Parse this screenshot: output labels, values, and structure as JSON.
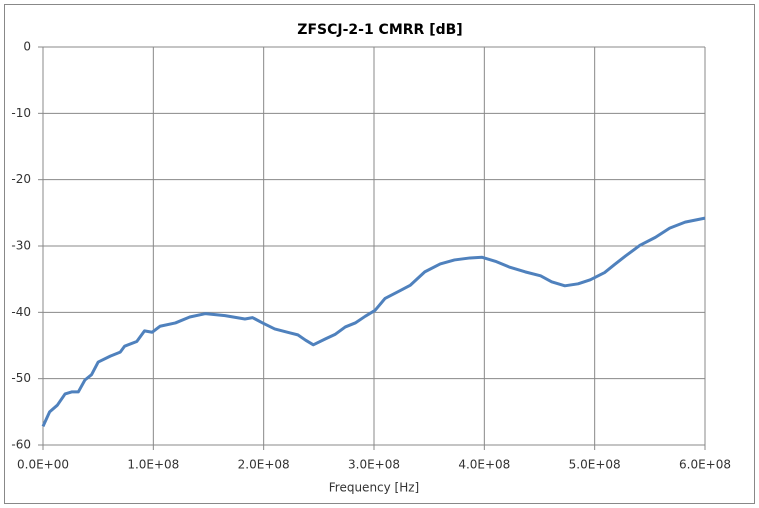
{
  "chart_data": {
    "type": "line",
    "title": "ZFSCJ-2-1  CMRR [dB]",
    "x_label": "Frequency [Hz]",
    "x": [
      0,
      6000000,
      13000000,
      20000000,
      26000000,
      32000000,
      38000000,
      44000000,
      50000000,
      61000000,
      70000000,
      74000000,
      85000000,
      92000000,
      99000000,
      106000000,
      120000000,
      133000000,
      147000000,
      165000000,
      183000000,
      190000000,
      199000000,
      210000000,
      224000000,
      231000000,
      238000000,
      245000000,
      256000000,
      265000000,
      274000000,
      283000000,
      292000000,
      301000000,
      310000000,
      324000000,
      333000000,
      346000000,
      360000000,
      373000000,
      387000000,
      398000000,
      410000000,
      423000000,
      437000000,
      451000000,
      461000000,
      473000000,
      485000000,
      496000000,
      509000000,
      518000000,
      528000000,
      541000000,
      555000000,
      568000000,
      582000000,
      600000000
    ],
    "series": [
      {
        "name": "CMRR",
        "color": "#4f81bd",
        "values": [
          -57.2,
          -55,
          -54,
          -52.3,
          -52,
          -52,
          -50.2,
          -49.4,
          -47.5,
          -46.6,
          -46,
          -45.1,
          -44.4,
          -42.8,
          -43,
          -42.1,
          -41.6,
          -40.7,
          -40.2,
          -40.5,
          -41,
          -40.8,
          -41.6,
          -42.5,
          -43.1,
          -43.4,
          -44.2,
          -44.9,
          -44,
          -43.3,
          -42.2,
          -41.6,
          -40.6,
          -39.7,
          -37.9,
          -36.7,
          -35.9,
          -33.9,
          -32.7,
          -32.1,
          -31.8,
          -31.7,
          -32.3,
          -33.2,
          -33.9,
          -34.5,
          -35.4,
          -36,
          -35.7,
          -35.1,
          -34,
          -32.8,
          -31.5,
          -29.9,
          -28.7,
          -27.3,
          -26.4,
          -25.8
        ]
      }
    ],
    "xlim": [
      0,
      600000000
    ],
    "xticks": [
      {
        "value": 0,
        "label": "0.0E+00"
      },
      {
        "value": 100000000,
        "label": "1.0E+08"
      },
      {
        "value": 200000000,
        "label": "2.0E+08"
      },
      {
        "value": 300000000,
        "label": "3.0E+08"
      },
      {
        "value": 400000000,
        "label": "4.0E+08"
      },
      {
        "value": 500000000,
        "label": "5.0E+08"
      },
      {
        "value": 600000000,
        "label": "6.0E+08"
      }
    ],
    "ylim": [
      -60,
      0
    ],
    "yticks": [
      0,
      -10,
      -20,
      -30,
      -40,
      -50,
      -60
    ],
    "grid": true
  }
}
